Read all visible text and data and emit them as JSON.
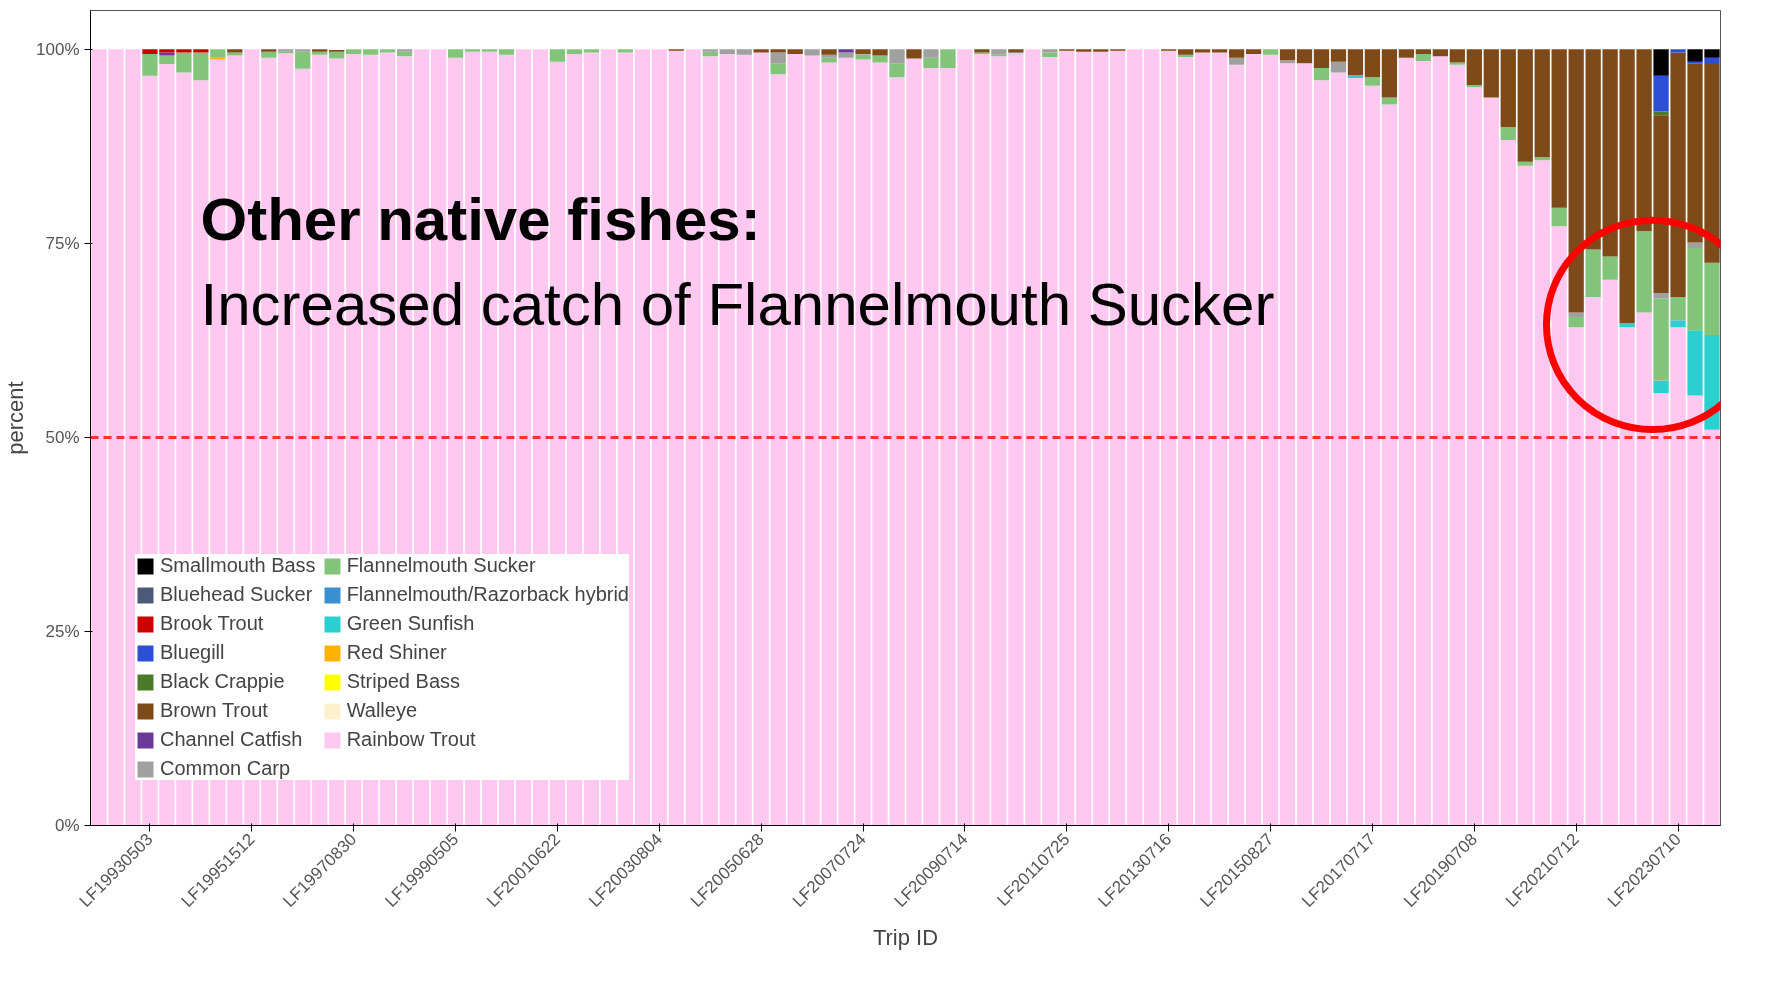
{
  "chart_data": {
    "type": "bar",
    "stacked": true,
    "xlabel": "Trip ID",
    "ylabel": "percent",
    "categories": [
      null,
      null,
      null,
      "LF19930503",
      null,
      null,
      null,
      null,
      null,
      "LF19951512",
      null,
      null,
      null,
      null,
      null,
      "LF19970830",
      null,
      null,
      null,
      null,
      null,
      "LF19990505",
      null,
      null,
      null,
      null,
      null,
      "LF20010622",
      null,
      null,
      null,
      null,
      null,
      "LF20030804",
      null,
      null,
      null,
      null,
      null,
      "LF20050628",
      null,
      null,
      null,
      null,
      null,
      "LF20070724",
      null,
      null,
      null,
      null,
      null,
      "LF20090714",
      null,
      null,
      null,
      null,
      null,
      "LF20110725",
      null,
      null,
      null,
      null,
      null,
      "LF20130716",
      null,
      null,
      null,
      null,
      null,
      "LF20150827",
      null,
      null,
      null,
      null,
      null,
      "LF20170717",
      null,
      null,
      null,
      null,
      null,
      "LF20190708",
      null,
      null,
      null,
      null,
      null,
      "LF20210712",
      null,
      null,
      null,
      null,
      null,
      "LF20230710",
      null,
      null
    ],
    "ylim": [
      0,
      105
    ],
    "yticks": [
      {
        "value": 0,
        "label": "0%"
      },
      {
        "value": 25,
        "label": "25%"
      },
      {
        "value": 50,
        "label": "50%"
      },
      {
        "value": 75,
        "label": "75%"
      },
      {
        "value": 100,
        "label": "100%"
      }
    ],
    "legend": "bottom left",
    "ref_lines": [
      {
        "axis": "y",
        "value": 50,
        "label": null,
        "color": "#ff3030",
        "line_style": "dashed"
      }
    ],
    "annotations": [
      "Other native fishes:",
      "Increased catch of Flannelmouth Sucker"
    ],
    "series": [
      {
        "name": "Rainbow Trout",
        "color": "#ffc8f0",
        "values": [
          100,
          100,
          100,
          96.6,
          98.1,
          97,
          96,
          98.7,
          99.2,
          100,
          98.9,
          99.5,
          97.5,
          99.3,
          98.8,
          99.4,
          99.3,
          99.6,
          99.1,
          100,
          100,
          98.9,
          99.7,
          99.7,
          99.3,
          100,
          100,
          98.4,
          99.4,
          99.6,
          100,
          99.6,
          100,
          100,
          99.8,
          100,
          99.1,
          99.4,
          99.3,
          99.6,
          96.8,
          99.4,
          99.2,
          98.3,
          98.9,
          98.7,
          98.3,
          96.4,
          98.8,
          97.6,
          97.6,
          100,
          99.4,
          99.1,
          99.5,
          100,
          99,
          99.8,
          99.7,
          99.7,
          99.8,
          100,
          100,
          99.8,
          99,
          99.6,
          99.6,
          98,
          99.4,
          99.3,
          98.2,
          98.2,
          96,
          97,
          96.3,
          95.3,
          92.9,
          98.9,
          98.5,
          99.1,
          98,
          95.1,
          93.8,
          88.3,
          85,
          85.7,
          77.2,
          64.2,
          68.1,
          70.3,
          64.2,
          66.1,
          55.7,
          64.2,
          55.4,
          51.0
        ]
      },
      {
        "name": "Walleye",
        "color": "#fff0cc",
        "values": [
          0,
          0,
          0,
          0,
          0,
          0,
          0,
          0,
          0,
          0,
          0,
          0,
          0,
          0,
          0,
          0,
          0,
          0,
          0,
          0,
          0,
          0,
          0,
          0,
          0,
          0,
          0,
          0,
          0,
          0,
          0,
          0,
          0,
          0,
          0,
          0,
          0,
          0,
          0,
          0,
          0,
          0,
          0,
          0,
          0,
          0,
          0,
          0,
          0,
          0,
          0,
          0,
          0,
          0,
          0,
          0,
          0,
          0,
          0,
          0,
          0,
          0,
          0,
          0,
          0,
          0,
          0,
          0,
          0,
          0,
          0,
          0,
          0,
          0,
          0,
          0,
          0,
          0,
          0,
          0,
          0,
          0,
          0,
          0,
          0,
          0,
          0,
          0,
          0,
          0,
          0,
          0,
          0,
          0,
          0,
          0
        ]
      },
      {
        "name": "Striped Bass",
        "color": "#ffff00",
        "values": [
          0,
          0,
          0,
          0,
          0,
          0,
          0,
          0,
          0,
          0,
          0,
          0,
          0,
          0,
          0,
          0,
          0,
          0,
          0,
          0,
          0,
          0,
          0,
          0,
          0,
          0,
          0,
          0,
          0,
          0,
          0,
          0,
          0,
          0,
          0,
          0,
          0,
          0,
          0,
          0,
          0,
          0,
          0,
          0,
          0,
          0,
          0,
          0,
          0,
          0,
          0,
          0,
          0,
          0,
          0,
          0,
          0,
          0,
          0,
          0,
          0,
          0,
          0,
          0,
          0,
          0,
          0,
          0,
          0,
          0,
          0,
          0,
          0,
          0,
          0,
          0,
          0,
          0,
          0,
          0,
          0,
          0,
          0,
          0,
          0,
          0,
          0,
          0,
          0,
          0,
          0,
          0,
          0,
          0,
          0,
          0
        ]
      },
      {
        "name": "Red Shiner",
        "color": "#ffb300",
        "values": [
          0,
          0,
          0,
          0,
          0,
          0,
          0,
          0.2,
          0,
          0,
          0,
          0,
          0,
          0,
          null,
          0,
          0,
          0,
          0,
          0,
          0,
          0,
          0,
          0,
          0,
          0,
          0,
          0,
          0,
          0,
          0,
          0,
          0,
          0,
          0,
          0,
          0,
          0,
          0,
          0,
          0,
          0,
          0,
          0,
          0,
          0,
          0,
          0,
          0,
          0,
          0,
          0,
          0,
          0,
          0,
          0,
          0,
          0,
          0,
          0,
          0,
          0,
          0,
          0,
          0,
          0,
          0,
          0,
          0,
          0,
          0,
          0,
          0,
          0,
          0,
          0,
          0,
          0,
          0,
          0,
          0,
          0,
          0,
          0,
          0,
          0,
          0,
          0,
          0,
          0,
          0,
          0,
          0,
          0,
          0,
          0
        ]
      },
      {
        "name": "Green Sunfish",
        "color": "#2bcfcf",
        "values": [
          0,
          0,
          0,
          0,
          0,
          0,
          0,
          0,
          0,
          0,
          0,
          0,
          0,
          0,
          0,
          0,
          0,
          0,
          0,
          0,
          0,
          0,
          0,
          0,
          0,
          0,
          0,
          0,
          0,
          0,
          0,
          0,
          0,
          0,
          0,
          0,
          0,
          0,
          0,
          0,
          0,
          0,
          0,
          0,
          0,
          0,
          0,
          0,
          0,
          0,
          0,
          0,
          0,
          0,
          0.1,
          0,
          0,
          0,
          0,
          0,
          0,
          0,
          0,
          0,
          0,
          0,
          0,
          0,
          0,
          0,
          0,
          0,
          0,
          0,
          0.4,
          0,
          0,
          0,
          0,
          0,
          0,
          0,
          0,
          0,
          0,
          0,
          0,
          0,
          0,
          0,
          0.5,
          0,
          1.6,
          0.9,
          8.4,
          12.2
        ]
      },
      {
        "name": "Flannelmouth/Razorback hybrid",
        "color": "#3a8fd0",
        "values": [
          0,
          0,
          0,
          0,
          0,
          0,
          0,
          0,
          0,
          0,
          0,
          0,
          0,
          0,
          0,
          0,
          0,
          0,
          0,
          0,
          0,
          0,
          0,
          0,
          0,
          0,
          0,
          0,
          0,
          0,
          0,
          0,
          0,
          0,
          0,
          0,
          0,
          0,
          0,
          0,
          0,
          0,
          0,
          0,
          0,
          0,
          0,
          0,
          0,
          0,
          0,
          0,
          0,
          0,
          0,
          0,
          0,
          0,
          0,
          0,
          0,
          0,
          0,
          0,
          0,
          0,
          0,
          0,
          0,
          0,
          0,
          0,
          0,
          0,
          0,
          0,
          0,
          0,
          0,
          0,
          0,
          0,
          0,
          0,
          0,
          0,
          0,
          0,
          0,
          0,
          0,
          0,
          0,
          0,
          0,
          0
        ]
      },
      {
        "name": "Flannelmouth Sucker",
        "color": "#82c57a",
        "values": [
          0,
          0,
          0,
          2.8,
          1.1,
          2.6,
          3.6,
          1.1,
          0.4,
          0,
          0.8,
          0.2,
          2.2,
          0.4,
          0.9,
          0.6,
          0.7,
          0.4,
          0.6,
          0,
          0,
          1.1,
          0.3,
          0.3,
          0.7,
          0,
          0,
          1.6,
          0.6,
          0.4,
          0,
          0.4,
          0,
          0,
          0,
          0,
          0.6,
          0,
          0,
          0,
          1.4,
          0,
          0,
          0.6,
          0,
          0.6,
          0.9,
          1.8,
          0,
          1.3,
          2.4,
          0,
          0.2,
          0.2,
          0,
          0,
          0.6,
          0,
          0,
          0,
          0,
          0,
          0,
          0,
          0.3,
          0,
          0,
          0,
          0,
          0.7,
          0,
          0,
          1.6,
          0,
          0,
          1.1,
          0.9,
          0,
          0.9,
          0,
          0.3,
          0.3,
          0,
          1.7,
          0.5,
          0.4,
          2.4,
          1.3,
          6.1,
          3.0,
          0,
          10.5,
          10.6,
          3.0,
          10.6,
          9.3
        ]
      },
      {
        "name": "Common Carp",
        "color": "#a0a0a0",
        "values": [
          0,
          0,
          0,
          0,
          0,
          0,
          0,
          0,
          0,
          0,
          0,
          0.3,
          0.3,
          0,
          0,
          0,
          0,
          0,
          0.3,
          0,
          0,
          0,
          0,
          0,
          0,
          0,
          0,
          0,
          0,
          0,
          0,
          0,
          0,
          0,
          0,
          0,
          0.3,
          0.6,
          0.7,
          0,
          1.4,
          0,
          0.8,
          0.4,
          0.7,
          0.1,
          0,
          1.8,
          0,
          1.1,
          0,
          0,
          0,
          0.7,
          0,
          0,
          0.4,
          0,
          0,
          0,
          0,
          0,
          0,
          0,
          0,
          0,
          0,
          0.9,
          0,
          0,
          0.4,
          0,
          0,
          1.4,
          0,
          0,
          0,
          0,
          0,
          0,
          0,
          0,
          0,
          0,
          0,
          0,
          0,
          0.6,
          0,
          0,
          0,
          0,
          0.7,
          0,
          0.7,
          0
        ]
      },
      {
        "name": "Channel Catfish",
        "color": "#6a3a9a",
        "values": [
          0,
          0,
          0,
          0,
          0.4,
          0,
          0,
          0,
          0,
          0,
          0,
          0,
          0,
          0,
          0,
          0,
          0,
          0,
          0,
          0,
          0,
          0,
          0,
          0,
          0,
          0,
          0,
          0,
          0,
          0,
          0,
          0,
          0,
          0,
          0,
          0,
          0,
          0,
          0,
          0,
          0,
          0,
          0,
          0,
          0.4,
          0,
          0,
          0,
          0,
          0,
          0,
          0,
          0,
          0,
          0,
          0,
          0,
          0,
          0,
          0,
          0,
          0,
          0,
          0,
          0,
          0,
          0,
          0,
          0,
          0,
          0,
          0,
          0,
          0,
          0,
          0,
          0,
          0,
          0,
          0,
          0,
          0,
          0,
          0,
          0,
          0,
          0,
          0,
          0,
          0,
          0,
          0,
          0,
          0,
          0,
          0
        ]
      },
      {
        "name": "Brown Trout",
        "color": "#7f4a19",
        "values": [
          0,
          0,
          0,
          0,
          0,
          0,
          0,
          0,
          0.4,
          0,
          0.3,
          0,
          0,
          0.3,
          0.2,
          0,
          0,
          0,
          0,
          0,
          0,
          0,
          0,
          0,
          0,
          0,
          0,
          0,
          0,
          0,
          0,
          0,
          0,
          0,
          0.2,
          0,
          0,
          0,
          0,
          0.4,
          0.4,
          0.6,
          0,
          0.7,
          0,
          0.6,
          0.8,
          0,
          1.2,
          0,
          0,
          0,
          0.4,
          0,
          0.4,
          0,
          0,
          0.2,
          0.3,
          0.3,
          0.2,
          0,
          0,
          0.2,
          0.7,
          0.4,
          0.4,
          1.1,
          0.6,
          0,
          1.4,
          1.8,
          2.4,
          1.6,
          3.3,
          3.6,
          6.2,
          1.1,
          0.6,
          0.9,
          1.7,
          4.6,
          6.2,
          10,
          14.5,
          13.9,
          20.4,
          33.9,
          25.8,
          26.7,
          35.3,
          23.4,
          22.9,
          31.5,
          23.1,
          25.6
        ]
      },
      {
        "name": "Black Crappie",
        "color": "#4a7a2a",
        "values": [
          0,
          0,
          0,
          0,
          0,
          0,
          0,
          0,
          0,
          0,
          0,
          0,
          0,
          0,
          0,
          0,
          0,
          0,
          0,
          0,
          0,
          0,
          0,
          0,
          0,
          0,
          0,
          0,
          0,
          0,
          0,
          0,
          0,
          0,
          0,
          0,
          0,
          0,
          0,
          0,
          0,
          0,
          0,
          0,
          0,
          0,
          0,
          0,
          0,
          0,
          0,
          0,
          0,
          0,
          0,
          0,
          0,
          0,
          0,
          0,
          0,
          0,
          0,
          0,
          0,
          0,
          0,
          0,
          0,
          0,
          0,
          0,
          0,
          0,
          0,
          0,
          0,
          0,
          0,
          0,
          0,
          0,
          0,
          0,
          0,
          0,
          0,
          0,
          0,
          0,
          0,
          0,
          0.5,
          0,
          0,
          0
        ]
      },
      {
        "name": "Bluegill",
        "color": "#2b4fd6",
        "values": [
          0,
          0,
          0,
          0,
          0,
          0,
          0,
          0,
          0,
          0,
          0,
          0,
          0,
          0,
          0,
          0,
          0,
          0,
          0,
          0,
          0,
          0,
          0,
          0,
          0,
          0,
          0,
          0,
          0,
          0,
          0,
          0,
          0,
          0,
          0,
          0,
          0,
          0,
          0,
          0,
          0,
          0,
          0,
          0,
          0,
          0,
          0,
          0,
          0,
          0,
          0,
          0,
          0,
          0,
          0,
          0,
          0,
          0,
          0,
          0,
          0,
          0,
          0,
          0,
          0,
          0,
          0,
          0,
          0,
          0,
          0,
          0,
          0,
          0,
          0,
          0,
          0,
          0,
          0,
          0,
          0,
          0,
          0,
          0,
          0,
          0,
          0,
          0,
          0,
          0,
          0,
          0,
          4.6,
          0.4,
          0.2,
          0.8
        ]
      },
      {
        "name": "Brook Trout",
        "color": "#cc0000",
        "values": [
          0,
          0,
          0,
          0.6,
          0.4,
          0.4,
          0.4,
          0,
          0,
          0,
          0,
          0,
          0,
          0,
          0,
          0,
          0,
          0,
          0,
          0,
          0,
          0,
          0,
          0,
          0,
          0,
          0,
          0,
          0,
          0,
          0,
          0,
          0,
          0,
          0,
          0,
          0,
          0,
          0,
          0,
          0,
          0,
          0,
          0,
          0,
          0,
          0,
          0,
          0,
          0,
          0,
          0,
          0,
          0,
          0,
          0,
          0,
          0,
          0,
          0,
          0,
          0,
          0,
          0,
          0,
          0,
          0,
          0,
          0,
          0,
          0,
          0,
          0,
          0,
          0,
          0,
          0,
          0,
          0,
          0,
          0,
          0,
          0,
          0,
          0,
          0,
          0,
          0,
          0,
          0,
          0,
          0,
          0,
          0,
          0,
          0
        ]
      },
      {
        "name": "Bluehead Sucker",
        "color": "#4a5a78",
        "values": [
          0,
          0,
          0,
          0,
          0,
          0,
          0,
          0,
          0,
          0,
          0,
          0,
          0,
          0,
          0,
          0,
          0,
          0,
          0,
          0,
          0,
          0,
          0,
          0,
          0,
          0,
          0,
          0,
          0,
          0,
          0,
          0,
          0,
          0,
          0,
          0,
          0,
          0,
          0,
          0,
          0,
          0,
          0,
          0,
          0,
          0,
          0,
          0,
          0,
          0,
          0,
          0,
          0,
          0,
          0,
          0,
          0,
          0,
          0,
          0,
          0,
          0,
          0,
          0,
          0,
          0,
          0,
          0,
          0,
          0,
          0,
          0,
          0,
          0,
          0,
          0,
          0,
          0,
          0,
          0,
          0,
          0,
          0,
          0,
          0,
          0,
          0,
          0,
          0,
          0,
          0,
          0,
          0,
          0,
          0,
          0
        ]
      },
      {
        "name": "Smallmouth Bass",
        "color": "#000000",
        "values": [
          0,
          0,
          0,
          0,
          0,
          0,
          0,
          0,
          0,
          0,
          0,
          0,
          0,
          0,
          0,
          0,
          0,
          0,
          0,
          0,
          0,
          0,
          0,
          0,
          0,
          0,
          0,
          0,
          0,
          0,
          0,
          0,
          0,
          0,
          0,
          0,
          0,
          0,
          0,
          0,
          0,
          0,
          0,
          0,
          0,
          0,
          0,
          0,
          0,
          0,
          0,
          0,
          0,
          0,
          0,
          0,
          0,
          0,
          0,
          0,
          0,
          0,
          0,
          0,
          0,
          0,
          0,
          0,
          0,
          0,
          0,
          0,
          0,
          0,
          0,
          0,
          0,
          0,
          0,
          0,
          0,
          0,
          0,
          0,
          0,
          0,
          0,
          0,
          0,
          0,
          0,
          0,
          3.4,
          0,
          1.6,
          1.1
        ]
      }
    ]
  }
}
